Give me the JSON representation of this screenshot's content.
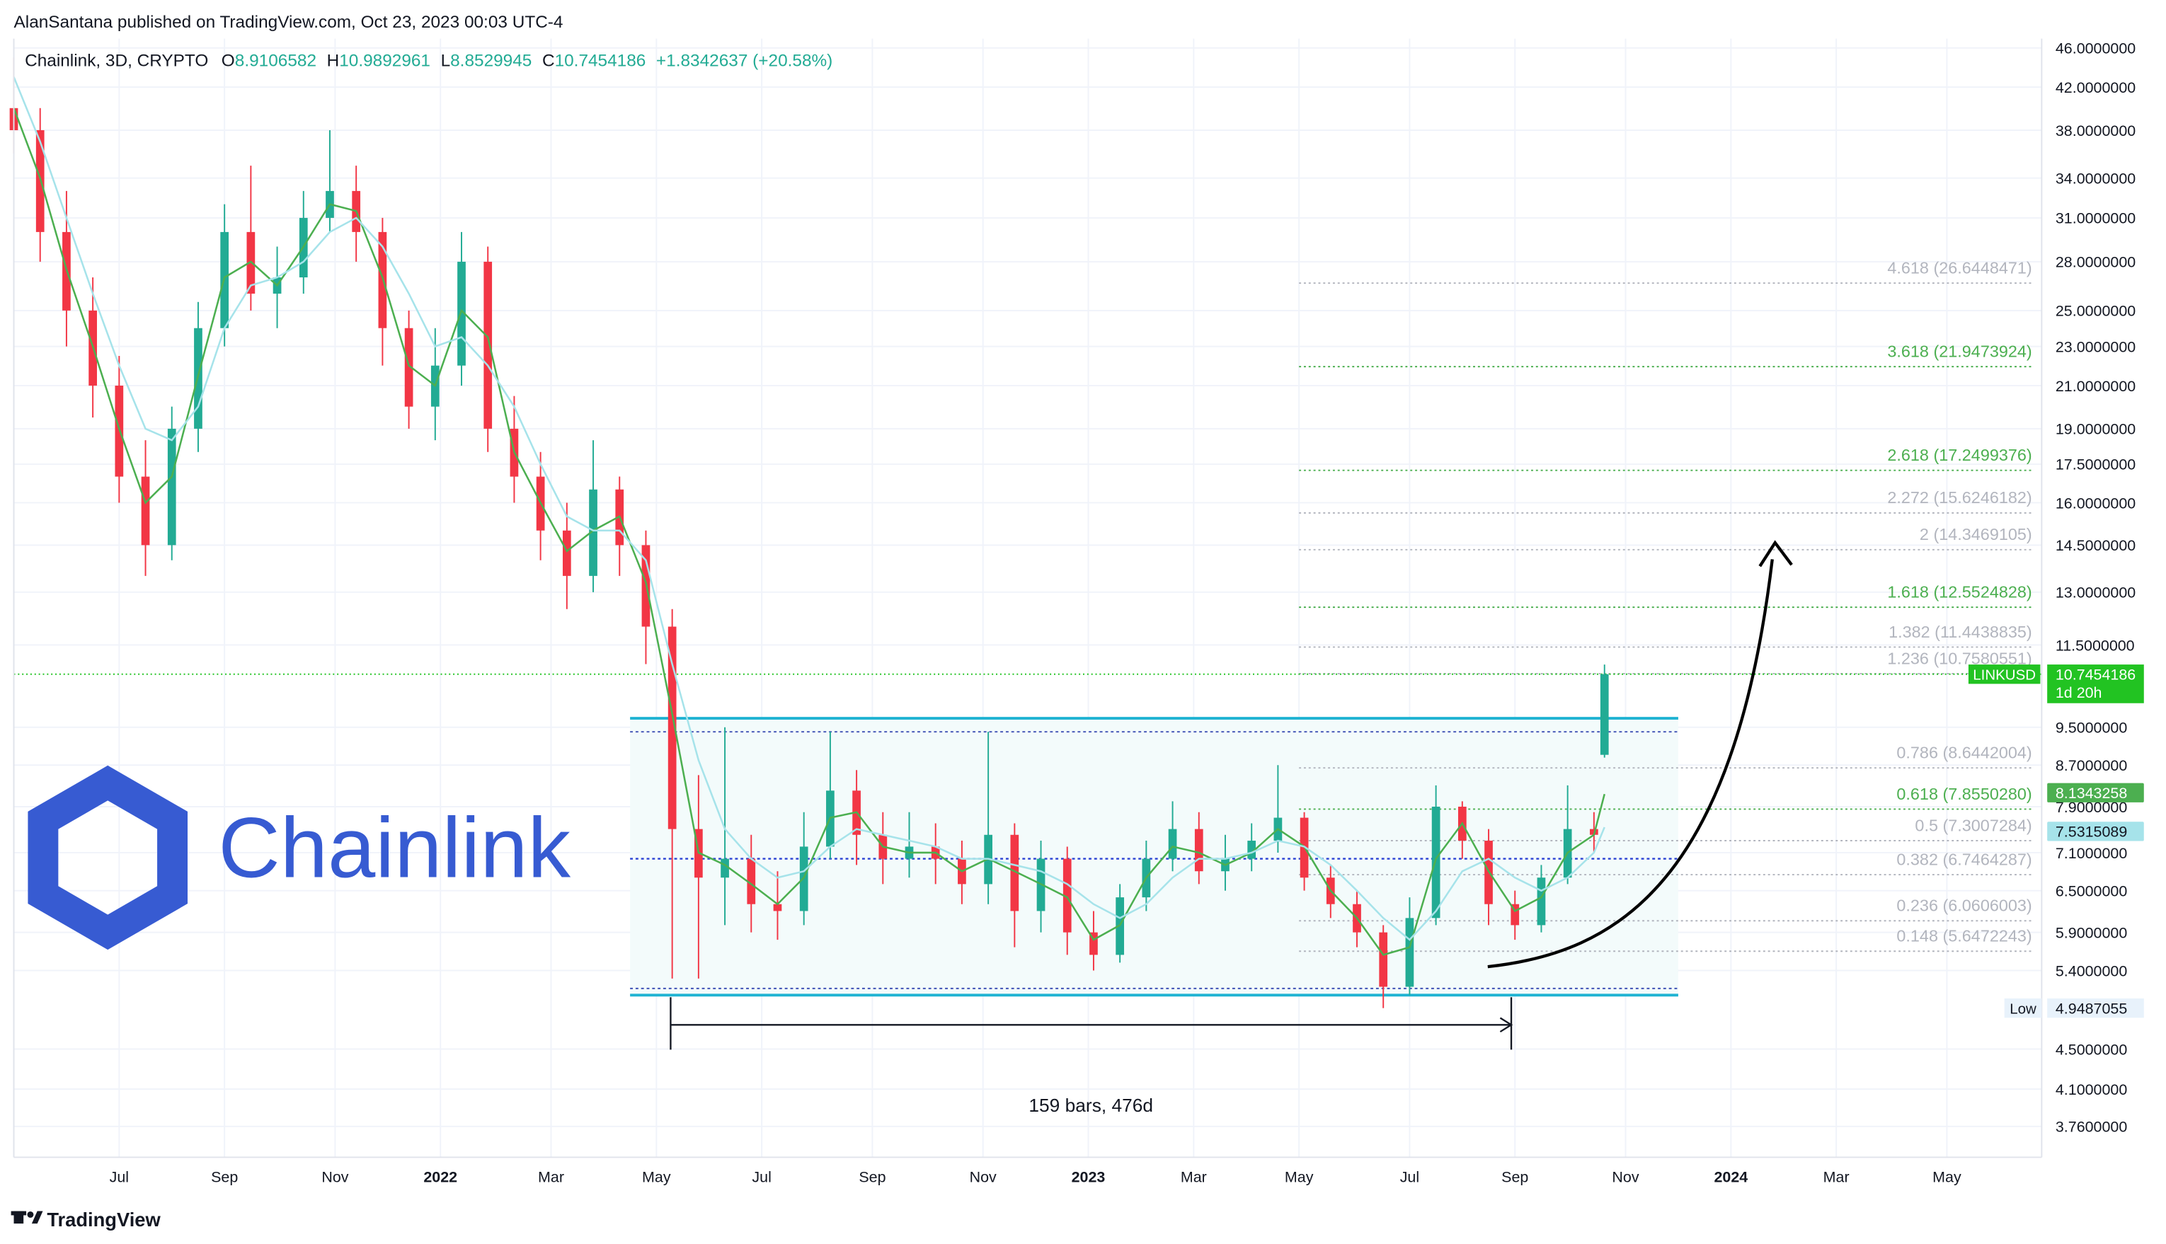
{
  "header": {
    "publisher": "AlanSantana published on TradingView.com, Oct 23, 2023 00:03 UTC-4"
  },
  "footer": {
    "brand": "TradingView"
  },
  "logo": {
    "text": "Chainlink"
  },
  "chart_data": {
    "type": "candlestick",
    "title": "Chainlink, 3D, CRYPTO",
    "ohlc_header": {
      "o_label": "O",
      "h_label": "H",
      "l_label": "L",
      "c_label": "C",
      "change": "+1.8342637 (+20.58%)"
    },
    "up_color": "#22ab94",
    "down_color": "#f23645",
    "log_scale": true,
    "grid": true,
    "x": [
      0,
      5,
      10,
      15,
      20,
      25,
      30,
      35,
      40,
      45,
      50,
      55,
      60,
      65,
      70,
      75,
      80,
      85,
      90,
      95,
      100,
      105,
      110,
      115,
      120,
      125,
      130,
      135,
      140,
      145,
      150,
      155,
      160,
      165,
      170,
      175,
      180,
      185,
      190,
      195,
      200,
      205,
      210,
      215,
      220,
      225,
      230,
      235,
      240,
      245,
      250,
      255,
      260,
      265,
      270,
      275,
      280,
      285,
      290,
      295,
      300,
      302
    ],
    "open": [
      40,
      38,
      30,
      25,
      21,
      17,
      14.5,
      19,
      24,
      30,
      26,
      27,
      31,
      33,
      30,
      24,
      20,
      22,
      28,
      19,
      17,
      15,
      13.5,
      16.5,
      14.5,
      12,
      7.5,
      6.7,
      7,
      6.3,
      6.2,
      7.2,
      8.2,
      7.4,
      7,
      7.2,
      7,
      6.6,
      7.4,
      6.2,
      7,
      5.9,
      5.6,
      6.4,
      7,
      7.5,
      6.8,
      7,
      7.3,
      7.7,
      6.7,
      6.3,
      5.9,
      5.2,
      6.1,
      7.9,
      7.3,
      6.3,
      6,
      6.7,
      7.5,
      8.9106582
    ],
    "high": [
      45,
      40,
      33,
      27,
      22.5,
      18.5,
      20,
      25.5,
      32,
      35,
      29,
      33,
      38,
      35,
      31,
      25,
      24,
      30,
      29,
      20.5,
      18,
      16,
      18.5,
      17,
      15,
      12.5,
      8.5,
      9.5,
      7.4,
      6.8,
      7.8,
      9.4,
      8.6,
      7.8,
      7.8,
      7.6,
      7.3,
      9.4,
      7.6,
      7.3,
      7.2,
      6.2,
      6.6,
      7.3,
      8,
      7.8,
      7.4,
      7.6,
      8.7,
      7.8,
      6.9,
      6.5,
      6,
      6.4,
      8.3,
      8,
      7.5,
      6.5,
      6.9,
      8.3,
      7.8,
      10.9892961
    ],
    "low": [
      36,
      28,
      23,
      19.5,
      16,
      13.5,
      14,
      18,
      23,
      25,
      24,
      26,
      30,
      28,
      22,
      19,
      18.5,
      21,
      18,
      16,
      14,
      12.5,
      13,
      13.5,
      11,
      5.3,
      5.3,
      6,
      5.9,
      5.8,
      6,
      7,
      6.9,
      6.6,
      6.7,
      6.6,
      6.3,
      6.3,
      5.7,
      5.9,
      5.6,
      5.4,
      5.5,
      6.2,
      6.8,
      6.6,
      6.5,
      6.8,
      7.1,
      6.5,
      6.1,
      5.7,
      4.9487055,
      5.1,
      6,
      7,
      6,
      5.8,
      5.9,
      6.6,
      7.1,
      8.8529945
    ],
    "close": [
      38,
      30,
      25,
      21,
      17,
      14.5,
      19,
      24,
      30,
      26,
      27,
      31,
      33,
      30,
      24,
      20,
      22,
      28,
      19,
      17,
      15,
      13.5,
      16.5,
      14.5,
      12,
      7.5,
      6.7,
      7,
      6.3,
      6.2,
      7.2,
      8.2,
      7.4,
      7,
      7.2,
      7,
      6.6,
      7.4,
      6.2,
      7,
      5.9,
      5.6,
      6.4,
      7,
      7.5,
      6.8,
      7,
      7.3,
      7.7,
      6.7,
      6.3,
      5.9,
      5.2,
      6.1,
      7.9,
      7.3,
      6.3,
      6,
      6.7,
      7.5,
      7.4,
      10.7454186
    ],
    "moving_averages": [
      {
        "color": "#4caf50",
        "tag_text": "#ffffff",
        "values": [
          40,
          34,
          27.5,
          23,
          19,
          16,
          17,
          21.5,
          27,
          28,
          26.5,
          29,
          32,
          31.5,
          27,
          22,
          21,
          25,
          23.5,
          18,
          16,
          14.3,
          15,
          15.5,
          13.3,
          9.8,
          7.1,
          6.9,
          6.6,
          6.3,
          6.7,
          7.7,
          7.8,
          7.2,
          7.1,
          7.1,
          6.8,
          7,
          6.8,
          6.6,
          6.4,
          5.8,
          6,
          6.7,
          7.2,
          7.1,
          6.9,
          7.1,
          7.5,
          7.2,
          6.5,
          6.1,
          5.6,
          5.7,
          7,
          7.6,
          6.8,
          6.2,
          6.4,
          7.1,
          7.4,
          8.1343258
        ]
      },
      {
        "color": "#a6e3ea",
        "tag_text": "#131722",
        "values": [
          43,
          37,
          31,
          26,
          22,
          19,
          18.5,
          20,
          24,
          26.5,
          27,
          28,
          30,
          31,
          29,
          26,
          23,
          23.5,
          22,
          20,
          17.5,
          15.5,
          15,
          15,
          14,
          11,
          8.8,
          7.5,
          7,
          6.7,
          6.8,
          7.2,
          7.5,
          7.4,
          7.3,
          7.2,
          7,
          7,
          6.9,
          6.8,
          6.6,
          6.3,
          6.1,
          6.3,
          6.7,
          7,
          7,
          7.1,
          7.3,
          7.2,
          6.9,
          6.5,
          6.1,
          5.8,
          6.2,
          6.8,
          7,
          6.7,
          6.5,
          6.7,
          7.1,
          7.5315089
        ]
      }
    ],
    "xlim": [
      0,
      385
    ],
    "xticks": [
      {
        "value": 20,
        "label": "Jul"
      },
      {
        "value": 40,
        "label": "Sep"
      },
      {
        "value": 61,
        "label": "Nov"
      },
      {
        "value": 81,
        "label": "2022"
      },
      {
        "value": 102,
        "label": "Mar"
      },
      {
        "value": 122,
        "label": "May"
      },
      {
        "value": 142,
        "label": "Jul"
      },
      {
        "value": 163,
        "label": "Sep"
      },
      {
        "value": 184,
        "label": "Nov"
      },
      {
        "value": 204,
        "label": "2023"
      },
      {
        "value": 224,
        "label": "Mar"
      },
      {
        "value": 244,
        "label": "May"
      },
      {
        "value": 265,
        "label": "Jul"
      },
      {
        "value": 285,
        "label": "Sep"
      },
      {
        "value": 306,
        "label": "Nov"
      },
      {
        "value": 326,
        "label": "2024"
      },
      {
        "value": 346,
        "label": "Mar"
      },
      {
        "value": 367,
        "label": "May"
      }
    ],
    "ylim": [
      3.5,
      47
    ],
    "yticks": [
      {
        "value": 46,
        "label": "46.0000000"
      },
      {
        "value": 42,
        "label": "42.0000000"
      },
      {
        "value": 38,
        "label": "38.0000000"
      },
      {
        "value": 34,
        "label": "34.0000000"
      },
      {
        "value": 31,
        "label": "31.0000000"
      },
      {
        "value": 28,
        "label": "28.0000000"
      },
      {
        "value": 25,
        "label": "25.0000000"
      },
      {
        "value": 23,
        "label": "23.0000000"
      },
      {
        "value": 21,
        "label": "21.0000000"
      },
      {
        "value": 19,
        "label": "19.0000000"
      },
      {
        "value": 17.5,
        "label": "17.5000000"
      },
      {
        "value": 16,
        "label": "16.0000000"
      },
      {
        "value": 14.5,
        "label": "14.5000000"
      },
      {
        "value": 13,
        "label": "13.0000000"
      },
      {
        "value": 11.5,
        "label": "11.5000000"
      },
      {
        "value": 9.5,
        "label": "9.5000000"
      },
      {
        "value": 8.7,
        "label": "8.7000000"
      },
      {
        "value": 7.9,
        "label": "7.9000000"
      },
      {
        "value": 7.1,
        "label": "7.1000000"
      },
      {
        "value": 6.5,
        "label": "6.5000000"
      },
      {
        "value": 5.9,
        "label": "5.9000000"
      },
      {
        "value": 5.4,
        "label": "5.4000000"
      },
      {
        "value": 4.5,
        "label": "4.5000000"
      },
      {
        "value": 4.1,
        "label": "4.1000000"
      },
      {
        "value": 3.76,
        "label": "3.7600000"
      }
    ],
    "last_price": {
      "symbol": "LINKUSD",
      "countdown": "1d 20h",
      "color": "#22c322"
    },
    "low_marker": {
      "label": "Low"
    },
    "fib": {
      "x_start": 244,
      "levels": [
        {
          "label": "4.618 (26.6448471)",
          "value": 26.6448471,
          "color": "#b2b5be"
        },
        {
          "label": "3.618 (21.9473924)",
          "value": 21.9473924,
          "color": "#4caf50"
        },
        {
          "label": "2.618 (17.2499376)",
          "value": 17.2499376,
          "color": "#4caf50"
        },
        {
          "label": "2.272 (15.6246182)",
          "value": 15.6246182,
          "color": "#b2b5be"
        },
        {
          "label": "2 (14.3469105)",
          "value": 14.3469105,
          "color": "#b2b5be"
        },
        {
          "label": "1.618 (12.5524828)",
          "value": 12.5524828,
          "color": "#4caf50"
        },
        {
          "label": "1.382 (11.4438835)",
          "value": 11.4438835,
          "color": "#b2b5be"
        },
        {
          "label": "1.236 (10.7580551)",
          "value": 10.7580551,
          "color": "#b2b5be"
        },
        {
          "label": "0.786 (8.6442004)",
          "value": 8.6442004,
          "color": "#b2b5be"
        },
        {
          "label": "0.618 (7.8550280)",
          "value": 7.855028,
          "color": "#4caf50"
        },
        {
          "label": "0.5 (7.3007284)",
          "value": 7.3007284,
          "color": "#b2b5be"
        },
        {
          "label": "0.382 (6.7464287)",
          "value": 6.7464287,
          "color": "#b2b5be"
        },
        {
          "label": "0.236 (6.0606003)",
          "value": 6.0606003,
          "color": "#b2b5be"
        },
        {
          "label": "0.148 (5.6472243)",
          "value": 5.6472243,
          "color": "#b2b5be"
        }
      ]
    },
    "range_box": {
      "top": 9.7,
      "bottom": 5.1,
      "inner_top": 9.4,
      "inner_bottom": 5.18,
      "mid": 7.0,
      "x_start": 117,
      "x_end": 316
    },
    "measure": {
      "label": "159 bars, 476d",
      "x_start": 124.7,
      "x_end": 284.3,
      "price": 4.76
    }
  }
}
